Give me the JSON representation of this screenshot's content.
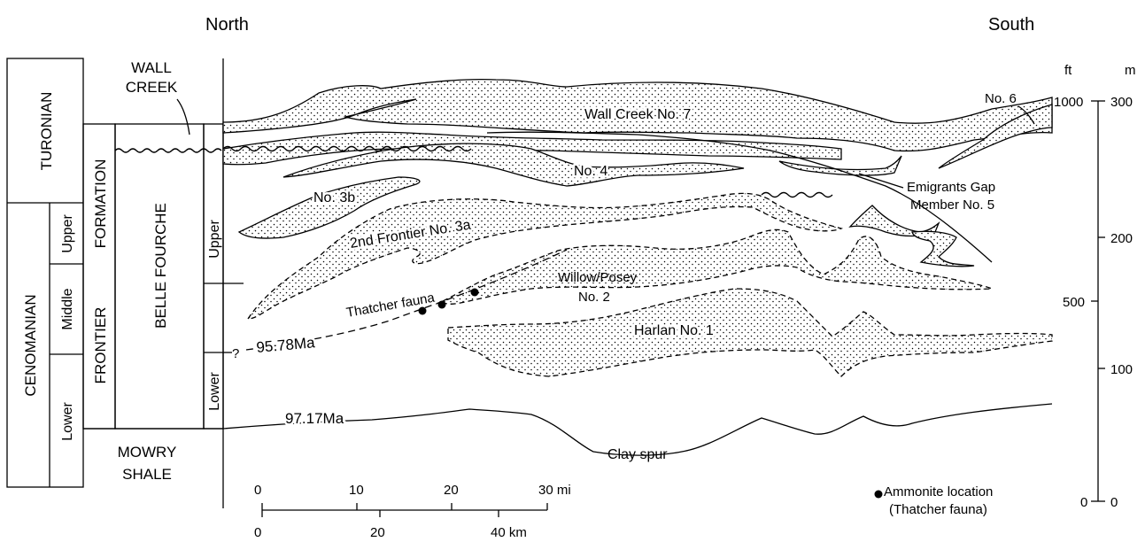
{
  "headings": {
    "north": "North",
    "south": "South"
  },
  "stages": {
    "turonian": "TURONIAN",
    "cenomanian": "CENOMANIAN",
    "upper": "Upper",
    "middle": "Middle",
    "lower": "Lower"
  },
  "formations": {
    "wall_creek_1": "WALL",
    "wall_creek_2": "CREEK",
    "frontier": "FRONTIER",
    "formation": "FORMATION",
    "belle_fourche": "BELLE FOURCHE",
    "mowry_1": "MOWRY",
    "mowry_2": "SHALE",
    "bf_upper": "Upper",
    "bf_lower": "Lower"
  },
  "units": {
    "wall_creek_7": "Wall Creek No. 7",
    "no6": "No. 6",
    "no4": "No. 4",
    "no3b": "No. 3b",
    "frontier_3a": "2nd Frontier No. 3a",
    "emigrants_1": "Emigrants Gap",
    "emigrants_2": "Member No. 5",
    "willow_1": "Willow/Posey",
    "willow_2": "No. 2",
    "harlan": "Harlan No. 1",
    "thatcher": "Thatcher fauna",
    "age_9578": "95.78Ma",
    "age_q": "?",
    "age_9717": "97.17Ma",
    "clay_spur": "Clay spur"
  },
  "scale": {
    "mi_ticks": [
      "0",
      "10",
      "20",
      "30 mi"
    ],
    "km_ticks": [
      "0",
      "20",
      "40 km"
    ]
  },
  "thickness_scale": {
    "ft_unit": "ft",
    "m_unit": "m",
    "ft_ticks": [
      "1000",
      "500",
      "0"
    ],
    "m_ticks": [
      "300",
      "200",
      "100",
      "0"
    ]
  },
  "legend": {
    "line1": "Ammonite location",
    "line2": "(Thatcher fauna)"
  }
}
